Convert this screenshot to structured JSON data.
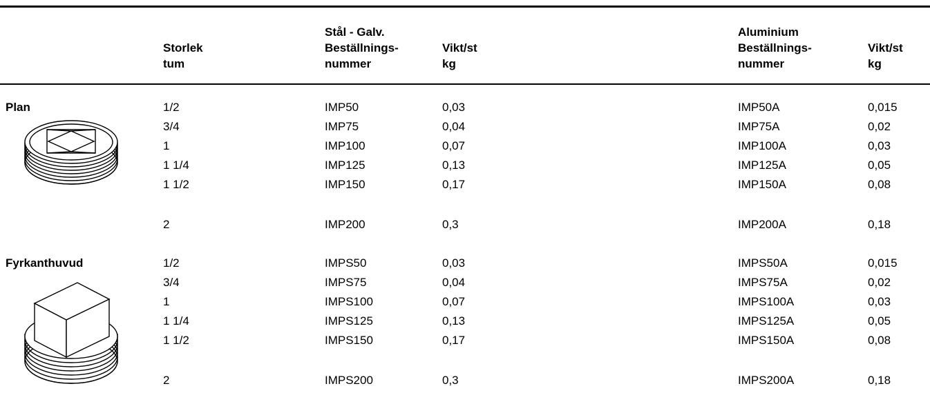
{
  "header": {
    "storlek": [
      "Storlek",
      "tum"
    ],
    "stal_nummer": [
      "Stål - Galv.",
      "Beställnings-",
      "nummer"
    ],
    "stal_vikt": [
      "Vikt/st",
      "kg"
    ],
    "alu_nummer": [
      "Aluminium",
      "Beställnings-",
      "nummer"
    ],
    "alu_vikt": [
      "Vikt/st",
      "kg"
    ]
  },
  "sections": [
    {
      "label": "Plan",
      "icon": "flat-plug-icon",
      "rows": [
        {
          "size": "1/2",
          "steel": "IMP50",
          "steel_kg": "0,03",
          "alu": "IMP50A",
          "alu_kg": "0,015"
        },
        {
          "size": "3/4",
          "steel": "IMP75",
          "steel_kg": "0,04",
          "alu": "IMP75A",
          "alu_kg": "0,02"
        },
        {
          "size": "1",
          "steel": "IMP100",
          "steel_kg": "0,07",
          "alu": "IMP100A",
          "alu_kg": "0,03"
        },
        {
          "size": "1 1/4",
          "steel": "IMP125",
          "steel_kg": "0,13",
          "alu": "IMP125A",
          "alu_kg": "0,05"
        },
        {
          "size": "1 1/2",
          "steel": "IMP150",
          "steel_kg": "0,17",
          "alu": "IMP150A",
          "alu_kg": "0,08"
        },
        {
          "size": "2",
          "steel": "IMP200",
          "steel_kg": "0,3",
          "alu": "IMP200A",
          "alu_kg": "0,18"
        }
      ]
    },
    {
      "label": "Fyrkanthuvud",
      "icon": "square-head-plug-icon",
      "rows": [
        {
          "size": "1/2",
          "steel": "IMPS50",
          "steel_kg": "0,03",
          "alu": "IMPS50A",
          "alu_kg": "0,015"
        },
        {
          "size": "3/4",
          "steel": "IMPS75",
          "steel_kg": "0,04",
          "alu": "IMPS75A",
          "alu_kg": "0,02"
        },
        {
          "size": "1",
          "steel": "IMPS100",
          "steel_kg": "0,07",
          "alu": "IMPS100A",
          "alu_kg": "0,03"
        },
        {
          "size": "1 1/4",
          "steel": "IMPS125",
          "steel_kg": "0,13",
          "alu": "IMPS125A",
          "alu_kg": "0,05"
        },
        {
          "size": "1 1/2",
          "steel": "IMPS150",
          "steel_kg": "0,17",
          "alu": "IMPS150A",
          "alu_kg": "0,08"
        },
        {
          "size": "2",
          "steel": "IMPS200",
          "steel_kg": "0,3",
          "alu": "IMPS200A",
          "alu_kg": "0,18"
        }
      ]
    }
  ]
}
